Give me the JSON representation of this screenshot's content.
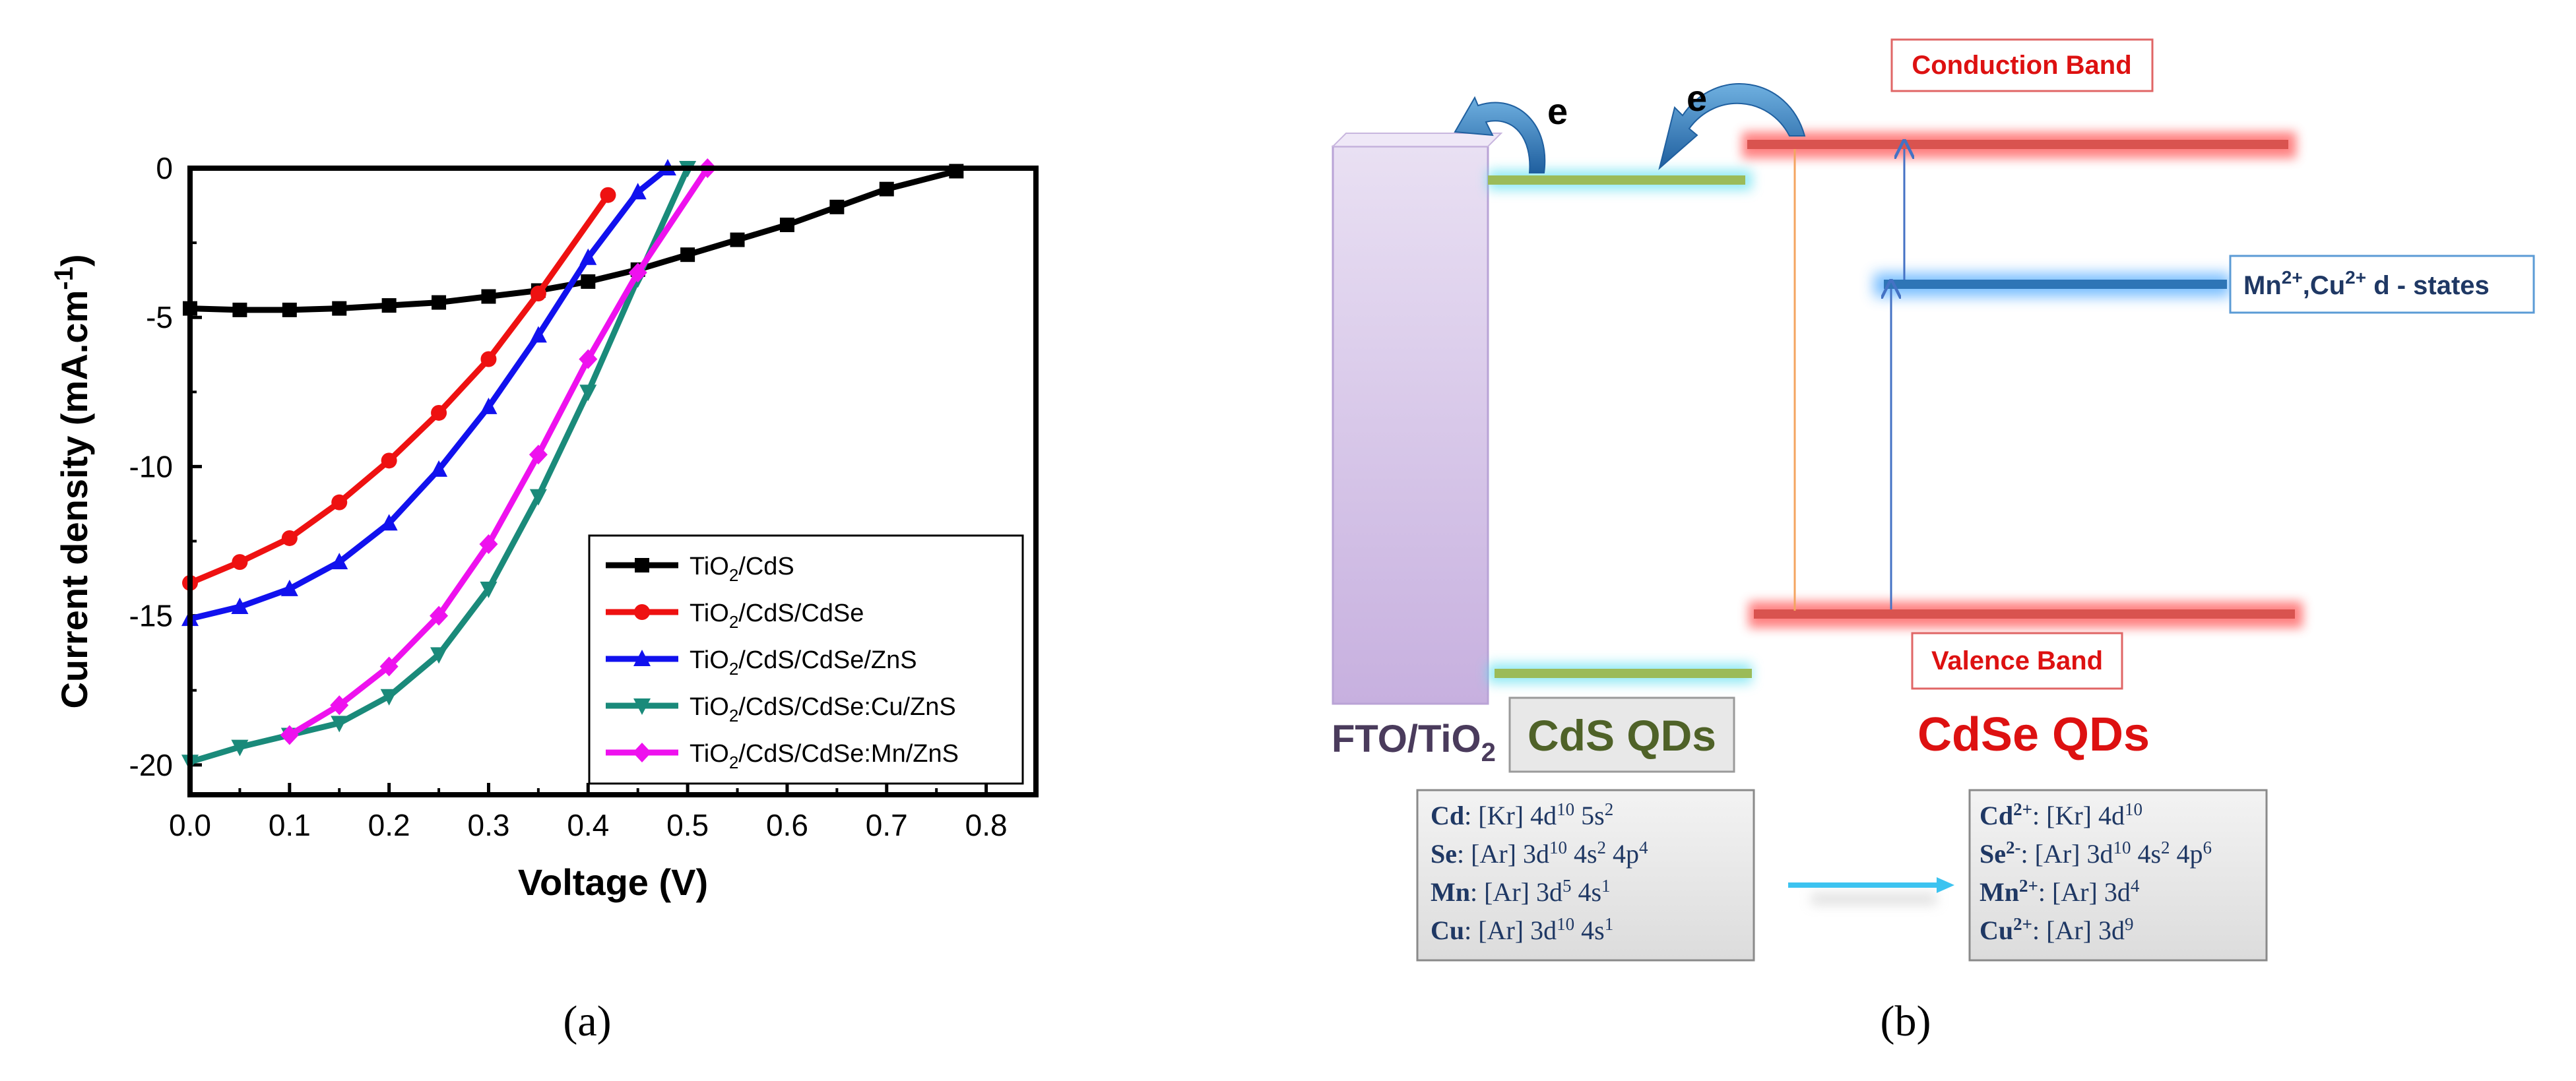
{
  "panel_a": {
    "label": "(a)",
    "chart_data": {
      "type": "line",
      "xlabel": "Voltage (V)",
      "ylabel_main": "Current density (mA.cm",
      "ylabel_sup": "-1",
      "ylabel_end": ")",
      "xlim": [
        0.0,
        0.85
      ],
      "ylim": [
        -21,
        0
      ],
      "x_ticks": [
        "0.0",
        "0.1",
        "0.2",
        "0.3",
        "0.4",
        "0.5",
        "0.6",
        "0.7",
        "0.8"
      ],
      "x_tick_values": [
        0.0,
        0.1,
        0.2,
        0.3,
        0.4,
        0.5,
        0.6,
        0.7,
        0.8
      ],
      "y_ticks": [
        "0",
        "-5",
        "-10",
        "-15",
        "-20"
      ],
      "y_tick_values": [
        0,
        -5,
        -10,
        -15,
        -20
      ],
      "series": [
        {
          "name": "TiO2/CdS",
          "label_main": "TiO",
          "label_sub": "2",
          "label_rest": "/CdS",
          "color": "#000000",
          "marker": "square",
          "x": [
            0,
            0.05,
            0.1,
            0.15,
            0.2,
            0.25,
            0.3,
            0.35,
            0.4,
            0.45,
            0.5,
            0.55,
            0.6,
            0.65,
            0.7,
            0.77
          ],
          "y": [
            -4.7,
            -4.75,
            -4.75,
            -4.7,
            -4.6,
            -4.5,
            -4.3,
            -4.1,
            -3.8,
            -3.4,
            -2.9,
            -2.4,
            -1.9,
            -1.3,
            -0.7,
            -0.1
          ]
        },
        {
          "name": "TiO2/CdS/CdSe",
          "label_main": "TiO",
          "label_sub": "2",
          "label_rest": "/CdS/CdSe",
          "color": "#ee1111",
          "marker": "circle",
          "x": [
            0,
            0.05,
            0.1,
            0.15,
            0.2,
            0.25,
            0.3,
            0.35,
            0.42
          ],
          "y": [
            -13.9,
            -13.2,
            -12.4,
            -11.2,
            -9.8,
            -8.2,
            -6.4,
            -4.2,
            -0.9
          ]
        },
        {
          "name": "TiO2/CdS/CdSe/ZnS",
          "label_main": "TiO",
          "label_sub": "2",
          "label_rest": "/CdS/CdSe/ZnS",
          "color": "#1111ee",
          "marker": "triangle-up",
          "x": [
            0,
            0.05,
            0.1,
            0.15,
            0.2,
            0.25,
            0.3,
            0.35,
            0.4,
            0.45,
            0.48
          ],
          "y": [
            -15.1,
            -14.7,
            -14.1,
            -13.2,
            -11.9,
            -10.1,
            -8.0,
            -5.6,
            -3.0,
            -0.8,
            0.0
          ]
        },
        {
          "name": "TiO2/CdS/CdSe:Cu/ZnS",
          "label_main": "TiO",
          "label_sub": "2",
          "label_rest": "/CdS/CdSe:Cu/ZnS",
          "color": "#1a8a7a",
          "marker": "triangle-down",
          "x": [
            0,
            0.05,
            0.1,
            0.15,
            0.2,
            0.25,
            0.3,
            0.35,
            0.4,
            0.45,
            0.5
          ],
          "y": [
            -19.9,
            -19.4,
            -19.0,
            -18.6,
            -17.7,
            -16.3,
            -14.1,
            -11.0,
            -7.5,
            -3.7,
            0.0
          ]
        },
        {
          "name": "TiO2/CdS/CdSe:Mn/ZnS",
          "label_main": "TiO",
          "label_sub": "2",
          "label_rest": "/CdS/CdSe:Mn/ZnS",
          "color": "#ee11ee",
          "marker": "diamond",
          "x": [
            0.1,
            0.15,
            0.2,
            0.25,
            0.3,
            0.35,
            0.4,
            0.45,
            0.52
          ],
          "y": [
            -19.0,
            -18.0,
            -16.7,
            -15.0,
            -12.6,
            -9.6,
            -6.4,
            -3.5,
            0.0
          ]
        }
      ]
    }
  },
  "panel_b": {
    "label": "(b)",
    "conduction_band_label": "Conduction Band",
    "valence_band_label": "Valence Band",
    "electron_label_1": "e",
    "electron_label_2": "e",
    "dstates_main_1": "Mn",
    "dstates_sup_1": "2+",
    "dstates_main_2": ",Cu",
    "dstates_sup_2": "2+",
    "dstates_rest": " d - states",
    "fto_main": "FTO/TiO",
    "fto_sub": "2",
    "cds_label": "CdS QDs",
    "cdse_label": "CdSe QDs",
    "config_left": [
      {
        "el": "Cd",
        "text": ":  [Kr] 4d",
        "s1": "10",
        "t2": " 5s",
        "s2": "2",
        "t3": "",
        "s3": "",
        "t4": "",
        "s4": ""
      },
      {
        "el": "Se",
        "text": ":   [Ar] 3d",
        "s1": "10",
        "t2": " 4s",
        "s2": "2",
        "t3": " 4p",
        "s3": "4",
        "t4": "",
        "s4": ""
      },
      {
        "el": "Mn",
        "text": ": [Ar] 3d",
        "s1": "5",
        "t2": " 4s",
        "s2": "1",
        "t3": "",
        "s3": "",
        "t4": "",
        "s4": ""
      },
      {
        "el": "Cu",
        "text": ":   [Ar] 3d",
        "s1": "10",
        "t2": " 4s",
        "s2": "1",
        "t3": "",
        "s3": "",
        "t4": "",
        "s4": ""
      }
    ],
    "config_right": [
      {
        "el": "Cd",
        "elsup": "2+",
        "text": ": [Kr] 4d",
        "s1": "10",
        "t2": "",
        "s2": "",
        "t3": "",
        "s3": ""
      },
      {
        "el": "Se",
        "elsup": "2-",
        "text": ":   [Ar] 3d",
        "s1": "10",
        "t2": " 4s",
        "s2": "2",
        "t3": " 4p",
        "s3": "6"
      },
      {
        "el": "Mn",
        "elsup": "2+",
        "text": ": [Ar] 3d",
        "s1": "4",
        "t2": "",
        "s2": "",
        "t3": "",
        "s3": ""
      },
      {
        "el": "Cu",
        "elsup": "2+",
        "text": ":  [Ar] 3d",
        "s1": "9",
        "t2": "",
        "s2": "",
        "t3": "",
        "s3": ""
      }
    ]
  },
  "colors": {
    "cb_red": "#d9534f",
    "text_red": "#dd1111",
    "dark_blue": "#1f3864",
    "cds_green": "#4f6228",
    "fto_purple": "#c9b3e0",
    "dstate_blue": "#2e75b6"
  }
}
